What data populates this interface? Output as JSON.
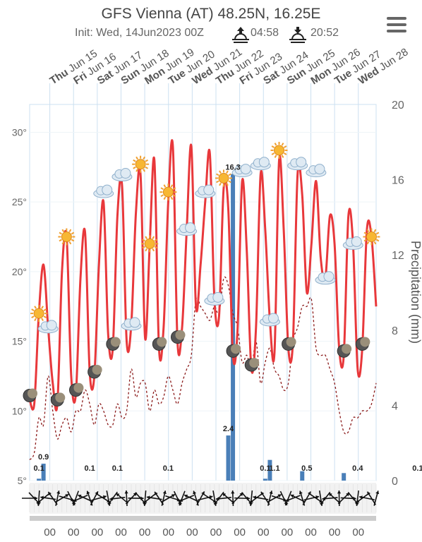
{
  "header": {
    "title": "GFS Vienna (AT) 48.25N, 16.25E",
    "init": "Init: Wed, 14Jun2023 00Z",
    "sunrise": "04:58",
    "sunset": "20:52"
  },
  "icons": {
    "menu": "hamburger-menu-icon",
    "sunrise": "sunrise-icon",
    "sunset": "sunset-icon"
  },
  "colors": {
    "temp_line": "#e8383b",
    "dewpoint_line": "#8b1a1a",
    "precip_bar": "#4a7fb8",
    "grid": "#cce0f0"
  },
  "chart_data": {
    "type": "line",
    "days": [
      {
        "dow": "Thu",
        "date": "Jun 15"
      },
      {
        "dow": "Fri",
        "date": "Jun 16"
      },
      {
        "dow": "Sat",
        "date": "Jun 17"
      },
      {
        "dow": "Sun",
        "date": "Jun 18"
      },
      {
        "dow": "Mon",
        "date": "Jun 19"
      },
      {
        "dow": "Tue",
        "date": "Jun 20"
      },
      {
        "dow": "Wed",
        "date": "Jun 21"
      },
      {
        "dow": "Thu",
        "date": "Jun 22"
      },
      {
        "dow": "Fri",
        "date": "Jun 23"
      },
      {
        "dow": "Sat",
        "date": "Jun 24"
      },
      {
        "dow": "Sun",
        "date": "Jun 25"
      },
      {
        "dow": "Mon",
        "date": "Jun 26"
      },
      {
        "dow": "Tue",
        "date": "Jun 27"
      },
      {
        "dow": "Wed",
        "date": "Jun 28"
      }
    ],
    "y_left": {
      "min": 5,
      "max": 32,
      "ticks": [
        5,
        10,
        15,
        20,
        25,
        30
      ],
      "unit": "°"
    },
    "y_right": {
      "label": "Precipitation (mm)",
      "min": 0,
      "max": 20,
      "ticks": [
        0,
        4,
        8,
        12,
        16,
        20
      ]
    },
    "x_hour_label": "00",
    "series": [
      {
        "key": "temperature",
        "y": [
          10.8,
          10.5,
          17,
          20.5,
          16,
          12,
          10.5,
          20,
          22.5,
          12.5,
          11.2,
          19.5,
          22.8,
          12.8,
          12.5,
          20.5,
          25,
          15.5,
          14.5,
          24,
          26.2,
          15,
          16.2,
          24.2,
          27,
          15.2,
          22,
          28,
          14.5,
          16,
          25,
          29,
          15,
          16,
          23,
          29,
          17.5,
          20.5,
          25,
          28.5,
          18,
          16.8,
          26,
          24.5,
          14,
          15.8,
          26.5,
          21.5,
          13,
          16,
          27,
          23,
          16.5,
          14.2,
          28,
          23,
          14.5,
          15,
          27,
          25.5,
          18.5,
          22,
          26.5,
          21,
          19.5,
          24,
          22,
          14.5,
          14,
          24,
          22,
          13,
          14.5,
          23,
          22.5,
          17.5
        ]
      },
      {
        "key": "dewpoint",
        "y": [
          6.5,
          7,
          9.5,
          9,
          12.5,
          10,
          8,
          9,
          9.5,
          8.5,
          10,
          10,
          11.5,
          10.5,
          9,
          10.5,
          10,
          9,
          9,
          10.5,
          9.5,
          10,
          13,
          11,
          12,
          12,
          10,
          11.5,
          10.5,
          11,
          12.5,
          11.5,
          10.5,
          12,
          13,
          14,
          18,
          17.5,
          17,
          16.5,
          17.5,
          17,
          19.5,
          19,
          17,
          16,
          13.5,
          14,
          13,
          15,
          12,
          13.5,
          14.5,
          13,
          12.5,
          11.5,
          12,
          15,
          16,
          17.5,
          17.5,
          18,
          14.5,
          14,
          14,
          13,
          12,
          10,
          8.5,
          8.5,
          9.5,
          9.5,
          10,
          10,
          10.5,
          12
        ]
      }
    ],
    "precip": {
      "values": [
        {
          "i": 3,
          "mm": 0.9
        },
        {
          "i": 44,
          "mm": 16.3
        },
        {
          "i": 43,
          "mm": 2.4
        },
        {
          "i": 52,
          "mm": 1.1
        },
        {
          "i": 51,
          "mm": 0.1
        },
        {
          "i": 59,
          "mm": 0.5
        },
        {
          "i": 68,
          "mm": 0.4
        },
        {
          "i": 2,
          "mm": 0.1
        }
      ],
      "labels": [
        {
          "text": "0.9",
          "i": 3
        },
        {
          "text": "0.1",
          "i": 2
        },
        {
          "text": "0.1",
          "i": 13
        },
        {
          "text": "0.1",
          "i": 19
        },
        {
          "text": "0.1",
          "i": 30
        },
        {
          "text": "16.3",
          "i": 44
        },
        {
          "text": "2.4",
          "i": 43
        },
        {
          "text": "1.1",
          "i": 53
        },
        {
          "text": "0.1",
          "i": 51
        },
        {
          "text": "0.5",
          "i": 60
        },
        {
          "text": "0.4",
          "i": 71
        },
        {
          "text": "0.1",
          "i": 84
        }
      ]
    },
    "grid": true
  }
}
